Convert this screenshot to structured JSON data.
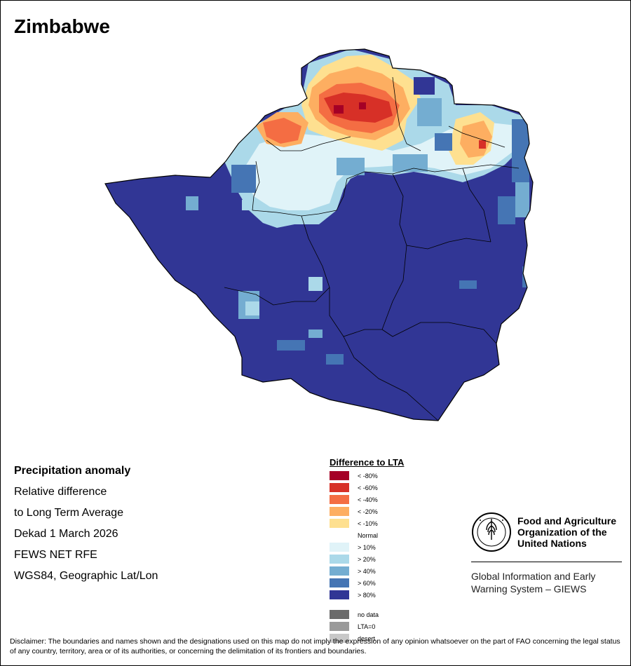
{
  "map_title": "Zimbabwe",
  "info": {
    "heading": "Precipitation anomaly",
    "line1": "Relative difference",
    "line2": "to Long Term Average",
    "period": "Dekad 1 March 2026",
    "source": "FEWS NET RFE",
    "projection": "WGS84, Geographic Lat/Lon"
  },
  "legend": {
    "title": "Difference to LTA",
    "items": [
      {
        "label": "< -80%",
        "color": "#a50026"
      },
      {
        "label": "< -60%",
        "color": "#d73027"
      },
      {
        "label": "< -40%",
        "color": "#f46d43"
      },
      {
        "label": "< -20%",
        "color": "#fdae61"
      },
      {
        "label": "< -10%",
        "color": "#fee090"
      },
      {
        "label": "Normal",
        "color": "#ffffff"
      },
      {
        "label": "> 10%",
        "color": "#e0f3f8"
      },
      {
        "label": "> 20%",
        "color": "#abd9e9"
      },
      {
        "label": "> 40%",
        "color": "#74add1"
      },
      {
        "label": "> 60%",
        "color": "#4575b4"
      },
      {
        "label": "> 80%",
        "color": "#313695"
      }
    ],
    "extra_items": [
      {
        "label": "no data",
        "color": "#6b6b6b"
      },
      {
        "label": "LTA=0",
        "color": "#9a9a9a"
      },
      {
        "label": "desert",
        "color": "#c8c8c8"
      }
    ]
  },
  "fao": {
    "org_name": "Food and Agriculture Organization of the United Nations",
    "system_name": "Global Information and Early Warning System – GIEWS"
  },
  "disclaimer": "Disclaimer: The boundaries and names shown and the designations used on this map do not imply the expression of any opinion whatsoever on the part of FAO concerning the legal status of any country, territory, area or of its authorities, or concerning the delimitation of its frontiers and boundaries."
}
